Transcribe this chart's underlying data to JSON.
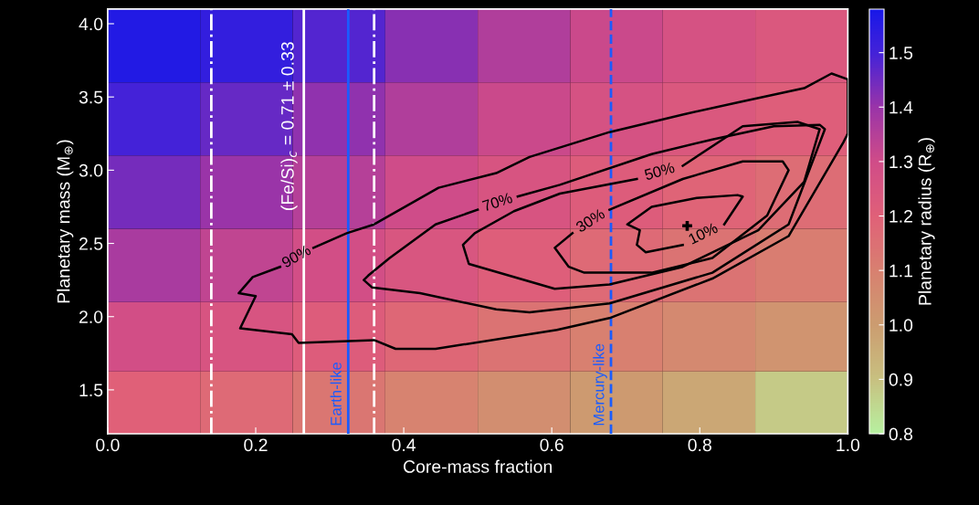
{
  "chart_data": {
    "type": "heatmap",
    "xlabel": "Core-mass fraction",
    "ylabel": "Planetary mass (M$_{⊕}$)",
    "clabel": "Planetary radius (R$_{⊕}$)",
    "x": [
      0.0625,
      0.1875,
      0.3125,
      0.4375,
      0.5625,
      0.6875,
      0.8125,
      0.9375
    ],
    "y": [
      3.85,
      3.35,
      2.85,
      2.35,
      1.85,
      1.4
    ],
    "cells": [
      [
        1.56,
        1.53,
        1.48,
        1.42,
        1.36,
        1.31,
        1.27,
        1.24
      ],
      [
        1.5,
        1.46,
        1.41,
        1.36,
        1.31,
        1.27,
        1.24,
        1.21
      ],
      [
        1.44,
        1.4,
        1.35,
        1.3,
        1.26,
        1.22,
        1.19,
        1.16
      ],
      [
        1.37,
        1.33,
        1.29,
        1.25,
        1.21,
        1.17,
        1.14,
        1.11
      ],
      [
        1.29,
        1.26,
        1.22,
        1.18,
        1.14,
        1.1,
        1.07,
        1.03
      ],
      [
        1.2,
        1.17,
        1.13,
        1.09,
        1.05,
        1.01,
        0.97,
        0.88
      ]
    ],
    "clim": [
      0.8,
      1.58
    ],
    "cticks": [
      0.8,
      0.9,
      {
        "value": 1.0,
        "label": "1.0"
      },
      1.1,
      1.2,
      1.3,
      1.4,
      1.5
    ],
    "xlim": [
      0,
      1
    ],
    "xticks": [
      {
        "value": 0,
        "label": "0.0"
      },
      0.2,
      0.4,
      0.6,
      0.8,
      {
        "value": 1,
        "label": "1.0"
      }
    ],
    "ylim": [
      1.2,
      4.1
    ],
    "yticks": [
      1.5,
      {
        "value": 2,
        "label": "2.0"
      },
      2.5,
      {
        "value": 3,
        "label": "3.0"
      },
      3.5,
      {
        "value": 4,
        "label": "4.0"
      }
    ],
    "grid": false,
    "series": [
      {
        "type": "line",
        "name": "90%",
        "color": "#000000",
        "x": [
          0.233,
          0.196,
          0.177,
          0.2,
          0.179,
          0.249,
          0.258,
          0.36,
          0.389,
          0.443,
          0.607,
          0.678,
          0.817,
          0.92,
          0.994,
          1.0,
          1.0,
          0.978,
          0.941,
          0.858,
          0.777,
          0.678,
          0.57,
          0.525,
          0.447,
          0.36,
          0.323,
          0.278
        ],
        "values": [
          2.34,
          2.27,
          2.16,
          2.14,
          1.92,
          1.88,
          1.82,
          1.84,
          1.78,
          1.78,
          1.91,
          1.99,
          2.26,
          2.55,
          3.19,
          3.25,
          3.62,
          3.66,
          3.56,
          3.47,
          3.38,
          3.26,
          3.09,
          2.98,
          2.88,
          2.63,
          2.57,
          2.47
        ]
      },
      {
        "type": "line",
        "name": "70%",
        "color": "#000000",
        "x": [
          0.5,
          0.443,
          0.381,
          0.352,
          0.346,
          0.357,
          0.422,
          0.525,
          0.57,
          0.678,
          0.817,
          0.92,
          0.969,
          0.962,
          0.9,
          0.817,
          0.735,
          0.611,
          0.554
        ],
        "values": [
          2.73,
          2.63,
          2.4,
          2.28,
          2.25,
          2.2,
          2.16,
          2.05,
          2.03,
          2.09,
          2.3,
          2.63,
          3.28,
          3.31,
          3.3,
          3.21,
          3.11,
          2.9,
          2.82
        ]
      },
      {
        "type": "line",
        "name": "50%",
        "color": "#000000",
        "x": [
          0.715,
          0.611,
          0.549,
          0.496,
          0.48,
          0.488,
          0.604,
          0.678,
          0.777,
          0.879,
          0.941,
          0.962,
          0.932,
          0.858,
          0.777
        ],
        "values": [
          2.94,
          2.84,
          2.72,
          2.57,
          2.49,
          2.36,
          2.19,
          2.22,
          2.34,
          2.59,
          2.92,
          3.28,
          3.33,
          3.3,
          3.03
        ]
      },
      {
        "type": "line",
        "name": "30%",
        "color": "#000000",
        "x": [
          0.628,
          0.604,
          0.623,
          0.644,
          0.735,
          0.817,
          0.891,
          0.92,
          0.912,
          0.858,
          0.777,
          0.678
        ],
        "values": [
          2.57,
          2.47,
          2.34,
          2.3,
          2.3,
          2.4,
          2.69,
          3.0,
          3.06,
          3.06,
          2.94,
          2.73
        ]
      },
      {
        "type": "line",
        "name": "10%",
        "color": "#000000",
        "x": [
          0.833,
          0.858,
          0.851,
          0.796,
          0.735,
          0.702,
          0.719,
          0.715,
          0.727,
          0.777
        ],
        "values": [
          2.63,
          2.82,
          2.83,
          2.81,
          2.75,
          2.63,
          2.59,
          2.49,
          2.44,
          2.49
        ]
      },
      {
        "type": "scatter",
        "color": "#000000",
        "marker": "cross",
        "x": [
          0.783
        ],
        "values": [
          2.62
        ]
      }
    ],
    "ref_lines": [
      {
        "axis": "x",
        "value": 0.14,
        "color": "#ffffff",
        "line_style": "dashdot"
      },
      {
        "axis": "x",
        "value": 0.265,
        "color": "#ffffff",
        "line_style": "solid"
      },
      {
        "axis": "x",
        "value": 0.36,
        "color": "#ffffff",
        "line_style": "dashdot"
      },
      {
        "axis": "x",
        "value": 0.325,
        "color": "#1a5cff",
        "line_style": "solid",
        "label": "Earth-like"
      },
      {
        "axis": "x",
        "value": 0.68,
        "color": "#1a5cff",
        "line_style": "dashed",
        "label": "Mercury-like"
      }
    ],
    "annotations": [
      {
        "text": "(Fe/Si)$_{c}$ = 0.71 ± 0.33",
        "x": 0.265,
        "y": 3.3
      }
    ]
  }
}
